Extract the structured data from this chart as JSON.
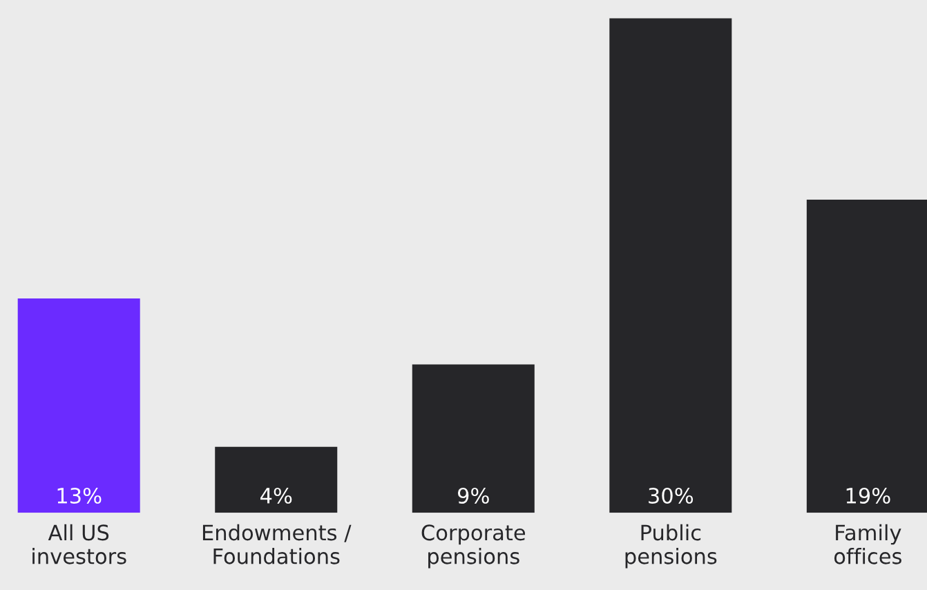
{
  "chart_data": {
    "type": "bar",
    "categories": [
      "All US\ninvestors",
      "Endowments /\nFoundations",
      "Corporate\npensions",
      "Public\npensions",
      "Family\noffices"
    ],
    "values": [
      13,
      4,
      9,
      30,
      19
    ],
    "colors": [
      "#6b2bff",
      "#262629",
      "#262629",
      "#262629",
      "#262629"
    ],
    "data_labels": true,
    "value_labels": [
      "13%",
      "4%",
      "9%",
      "30%",
      "19%"
    ],
    "grid": false
  }
}
